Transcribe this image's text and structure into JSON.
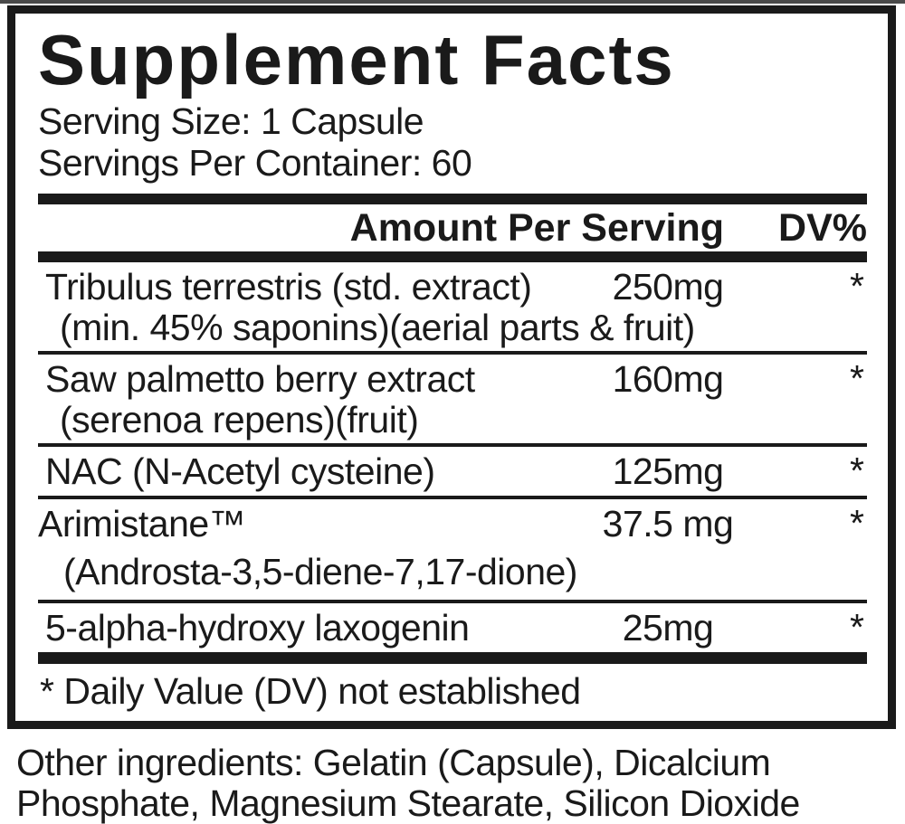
{
  "panel": {
    "title": "Supplement Facts",
    "serving_size": "Serving Size: 1 Capsule",
    "servings_per_container": "Servings Per Container: 60",
    "columns": {
      "amount": "Amount Per Serving",
      "dv": "DV%"
    },
    "footnote": "* Daily Value (DV) not established"
  },
  "ingredients": [
    {
      "name": "Tribulus terrestris (std. extract)",
      "detail": "(min. 45% saponins)(aerial parts & fruit)",
      "amount": "250mg",
      "dv": "*"
    },
    {
      "name": "Saw palmetto berry extract",
      "detail": "(serenoa repens)(fruit)",
      "amount": "160mg",
      "dv": "*"
    },
    {
      "name": "NAC (N-Acetyl cysteine)",
      "amount": "125mg",
      "dv": "*"
    },
    {
      "name": "Arimistane™",
      "detail": "(Androsta-3,5-diene-7,17-dione)",
      "amount": "37.5 mg",
      "dv": "*"
    },
    {
      "name": "5-alpha-hydroxy laxogenin",
      "amount": "25mg",
      "dv": "*"
    }
  ],
  "other_ingredients": {
    "lines": [
      "Other ingredients: Gelatin (Capsule), Dicalcium",
      "Phosphate, Magnesium Stearate, Silicon Dioxide"
    ]
  },
  "colors": {
    "text": "#1a1a1a",
    "background": "#ffffff",
    "border": "#1a1a1a"
  }
}
